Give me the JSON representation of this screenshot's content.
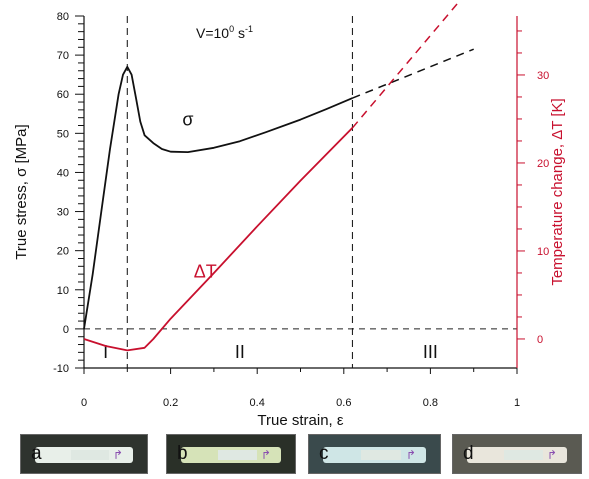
{
  "chart_data": {
    "type": "line",
    "annotation": "V=10",
    "annotation_sup": "0",
    "annotation_unit": " s",
    "annotation_unit_sup": "-1",
    "xlabel": "True strain, ε",
    "ylabel_left": "True stress, σ [MPa]",
    "ylabel_right": "Temperature change, ΔT [K]",
    "xlim": [
      0,
      1
    ],
    "ylim_left": [
      -10,
      80
    ],
    "ylim_right": [
      -3.3,
      36.7
    ],
    "x_ticks": [
      0,
      0.2,
      0.4,
      0.6,
      0.8,
      1
    ],
    "x_tick_labels": [
      "0",
      "0.2",
      "0.4",
      "0.6",
      "0.8",
      "1"
    ],
    "y_left_ticks": [
      -10,
      0,
      10,
      20,
      30,
      40,
      50,
      60,
      70,
      80
    ],
    "y_left_tick_labels": [
      "-10",
      "0",
      "10",
      "20",
      "30",
      "40",
      "50",
      "60",
      "70",
      "80"
    ],
    "y_right_ticks": [
      0,
      10,
      20,
      30
    ],
    "y_right_tick_labels": [
      "0",
      "10",
      "20",
      "30"
    ],
    "vlines": [
      0.1,
      0.62
    ],
    "hline": 0,
    "regions": [
      {
        "label": "I",
        "x": 0.05
      },
      {
        "label": "II",
        "x": 0.36
      },
      {
        "label": "III",
        "x": 0.8
      }
    ],
    "series": [
      {
        "name": "σ",
        "axis": "left",
        "color": "#111111",
        "label_x": 0.24,
        "label_y": 52,
        "points": [
          [
            0,
            0
          ],
          [
            0.02,
            14
          ],
          [
            0.04,
            30
          ],
          [
            0.06,
            46
          ],
          [
            0.08,
            60
          ],
          [
            0.09,
            65
          ],
          [
            0.1,
            67
          ],
          [
            0.11,
            65
          ],
          [
            0.12,
            59
          ],
          [
            0.13,
            53
          ],
          [
            0.14,
            49.5
          ],
          [
            0.16,
            47.5
          ],
          [
            0.18,
            46
          ],
          [
            0.2,
            45.3
          ],
          [
            0.24,
            45.2
          ],
          [
            0.3,
            46.3
          ],
          [
            0.36,
            48
          ],
          [
            0.42,
            50.3
          ],
          [
            0.5,
            53.5
          ],
          [
            0.56,
            56.2
          ],
          [
            0.62,
            59
          ]
        ],
        "extrapolated": [
          [
            0.62,
            59
          ],
          [
            0.9,
            71.5
          ]
        ]
      },
      {
        "name": "ΔT",
        "axis": "right",
        "color": "#c8102e",
        "label_x": 0.28,
        "label_y": 7,
        "points": [
          [
            0,
            0
          ],
          [
            0.05,
            -0.8
          ],
          [
            0.1,
            -1.3
          ],
          [
            0.14,
            -1
          ],
          [
            0.16,
            0
          ],
          [
            0.2,
            2.3
          ],
          [
            0.3,
            7.5
          ],
          [
            0.4,
            12.8
          ],
          [
            0.5,
            18
          ],
          [
            0.62,
            24
          ]
        ],
        "extrapolated": [
          [
            0.62,
            24
          ],
          [
            0.9,
            40.3
          ]
        ]
      }
    ]
  },
  "photos": [
    {
      "label": "a",
      "mark": "↱"
    },
    {
      "label": "b",
      "mark": "↱"
    },
    {
      "label": "c",
      "mark": "↱"
    },
    {
      "label": "d",
      "mark": "↱"
    }
  ]
}
